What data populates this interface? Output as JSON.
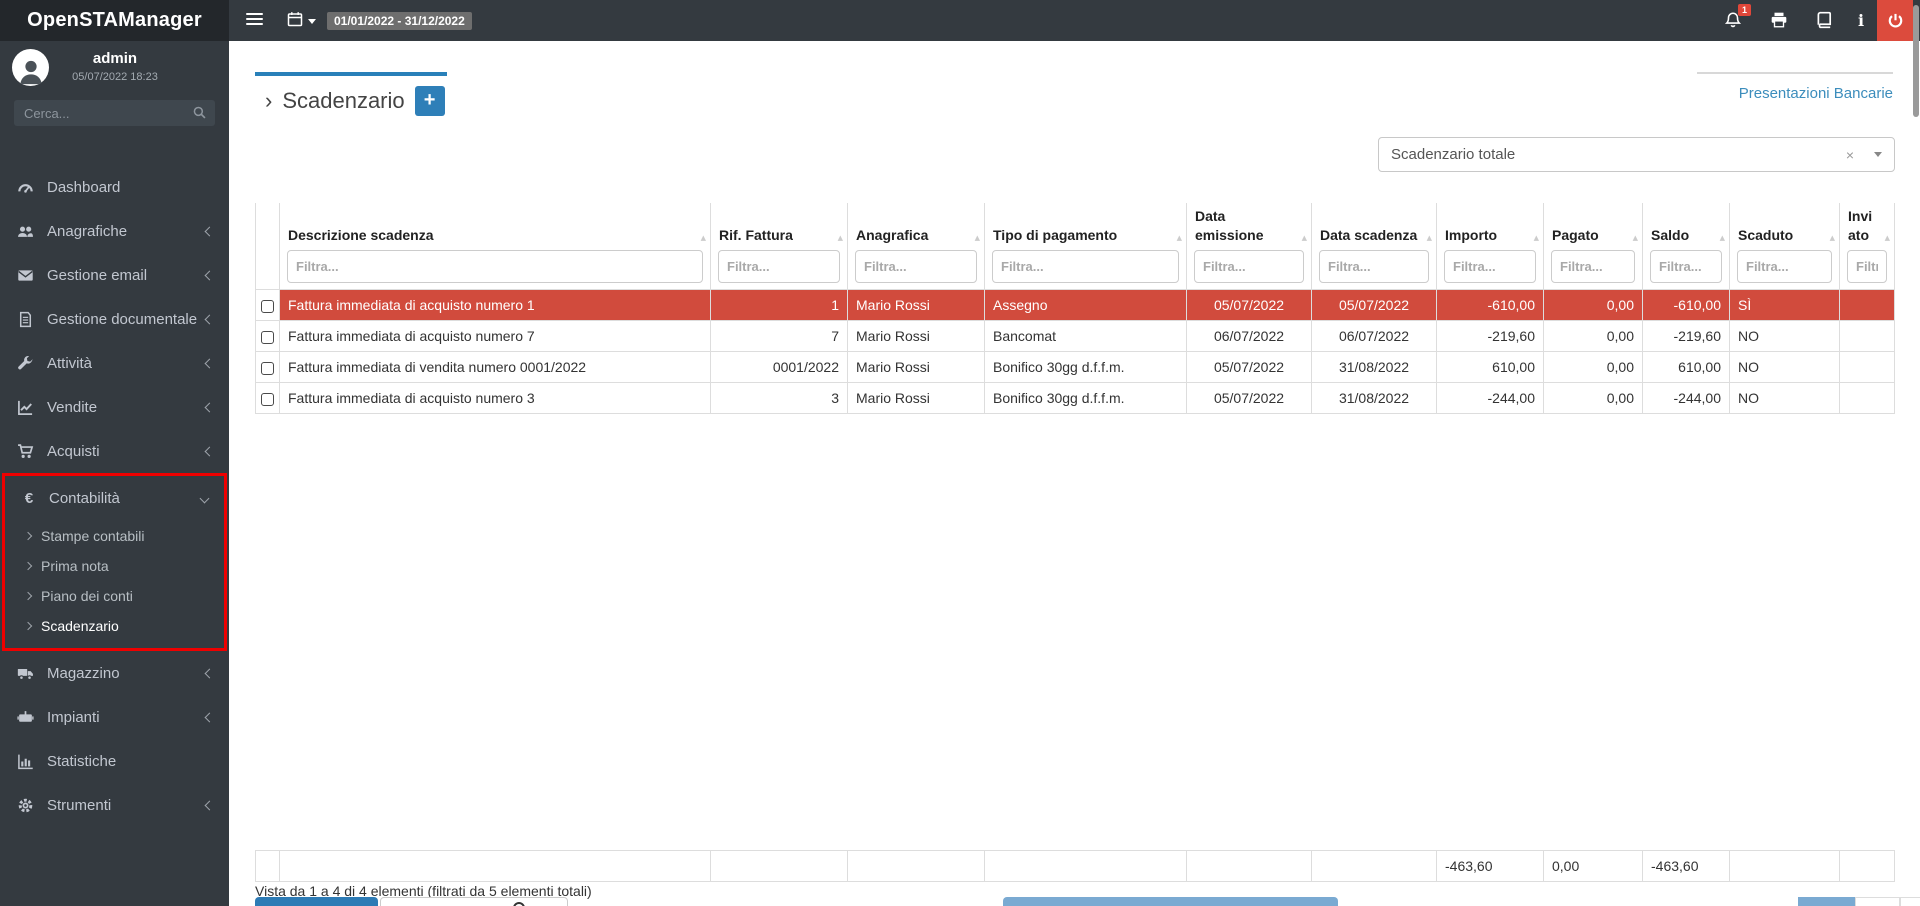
{
  "app": {
    "title": "OpenSTAManager"
  },
  "topbar": {
    "date_range": "01/01/2022 - 31/12/2022",
    "notification_count": "1",
    "icons": [
      "hamburger-icon",
      "calendar-icon",
      "bell-icon",
      "printer-icon",
      "book-icon",
      "info-icon",
      "power-icon"
    ]
  },
  "sidebar": {
    "user": {
      "name": "admin",
      "datetime": "05/07/2022 18:23"
    },
    "search_placeholder": "Cerca...",
    "items": [
      {
        "id": "dashboard",
        "label": "Dashboard",
        "icon": "dashboard"
      },
      {
        "id": "anagrafiche",
        "label": "Anagrafiche",
        "icon": "users",
        "chevron": "left"
      },
      {
        "id": "gestione-email",
        "label": "Gestione email",
        "icon": "envelope",
        "chevron": "left"
      },
      {
        "id": "gestione-documentale",
        "label": "Gestione documentale",
        "icon": "document",
        "chevron": "left"
      },
      {
        "id": "attivita",
        "label": "Attività",
        "icon": "wrench",
        "chevron": "left"
      },
      {
        "id": "vendite",
        "label": "Vendite",
        "icon": "chart-line",
        "chevron": "left"
      },
      {
        "id": "acquisti",
        "label": "Acquisti",
        "icon": "cart",
        "chevron": "left"
      },
      {
        "id": "contabilita",
        "label": "Contabilità",
        "icon": "euro",
        "chevron": "down",
        "highlighted": true,
        "children": [
          {
            "id": "stampe-contabili",
            "label": "Stampe contabili"
          },
          {
            "id": "prima-nota",
            "label": "Prima nota"
          },
          {
            "id": "piano-dei-conti",
            "label": "Piano dei conti"
          },
          {
            "id": "scadenzario",
            "label": "Scadenzario",
            "active": true
          }
        ]
      },
      {
        "id": "magazzino",
        "label": "Magazzino",
        "icon": "truck",
        "chevron": "left"
      },
      {
        "id": "impianti",
        "label": "Impianti",
        "icon": "industry",
        "chevron": "left"
      },
      {
        "id": "statistiche",
        "label": "Statistiche",
        "icon": "bar-chart"
      },
      {
        "id": "strumenti",
        "label": "Strumenti",
        "icon": "gear",
        "chevron": "left"
      }
    ]
  },
  "main": {
    "tab": {
      "caret": "›",
      "title": "Scadenzario",
      "add_button": "+"
    },
    "top_right_link": "Presentazioni Bancarie",
    "filter_select": {
      "value": "Scadenzario totale",
      "clear_icon": "×"
    },
    "table": {
      "filter_placeholder": "Filtra...",
      "sort_caret": "▲",
      "columns": [
        {
          "key": "sel",
          "label": ""
        },
        {
          "key": "descrizione",
          "label": "Descrizione scadenza"
        },
        {
          "key": "rif",
          "label": "Rif. Fattura"
        },
        {
          "key": "anagrafica",
          "label": "Anagrafica"
        },
        {
          "key": "tipo",
          "label": "Tipo di pagamento"
        },
        {
          "key": "emissione",
          "label": "Data emissione"
        },
        {
          "key": "scadenza",
          "label": "Data scadenza"
        },
        {
          "key": "importo",
          "label": "Importo"
        },
        {
          "key": "pagato",
          "label": "Pagato"
        },
        {
          "key": "saldo",
          "label": "Saldo"
        },
        {
          "key": "scaduto",
          "label": "Scaduto"
        },
        {
          "key": "inviato",
          "label": "Inviato"
        }
      ],
      "rows": [
        {
          "selected": true,
          "descrizione": "Fattura immediata di acquisto numero 1",
          "rif": "1",
          "anagrafica": "Mario Rossi",
          "tipo": "Assegno",
          "emissione": "05/07/2022",
          "scadenza": "05/07/2022",
          "importo": "-610,00",
          "pagato": "0,00",
          "saldo": "-610,00",
          "scaduto": "SÌ",
          "inviato": ""
        },
        {
          "selected": false,
          "descrizione": "Fattura immediata di acquisto numero 7",
          "rif": "7",
          "anagrafica": "Mario Rossi",
          "tipo": "Bancomat",
          "emissione": "06/07/2022",
          "scadenza": "06/07/2022",
          "importo": "-219,60",
          "pagato": "0,00",
          "saldo": "-219,60",
          "scaduto": "NO",
          "inviato": ""
        },
        {
          "selected": false,
          "descrizione": "Fattura immediata di vendita numero 0001/2022",
          "rif": "0001/2022",
          "anagrafica": "Mario Rossi",
          "tipo": "Bonifico 30gg d.f.f.m.",
          "emissione": "05/07/2022",
          "scadenza": "31/08/2022",
          "importo": "610,00",
          "pagato": "0,00",
          "saldo": "610,00",
          "scaduto": "NO",
          "inviato": ""
        },
        {
          "selected": false,
          "descrizione": "Fattura immediata di acquisto numero 3",
          "rif": "3",
          "anagrafica": "Mario Rossi",
          "tipo": "Bonifico 30gg d.f.f.m.",
          "emissione": "05/07/2022",
          "scadenza": "31/08/2022",
          "importo": "-244,00",
          "pagato": "0,00",
          "saldo": "-244,00",
          "scaduto": "NO",
          "inviato": ""
        }
      ],
      "footer_totals": {
        "importo": "-463,60",
        "pagato": "0,00",
        "saldo": "-463,60"
      },
      "info": "Vista da 1 a 4 di 4 elementi (filtrati da 5 elementi totali)"
    }
  },
  "colors": {
    "topbar": "#343a40",
    "logo_bg": "#23272b",
    "accent_blue": "#2980b9",
    "link_blue": "#3c8dbc",
    "selected_row_red": "#d14b3d",
    "annotation_red": "#ef0000",
    "date_badge_grey": "#6e6e6e",
    "notification_red": "#e0473a",
    "power_red": "#dc4b3d",
    "pager_light_blue": "#7aaad2"
  }
}
